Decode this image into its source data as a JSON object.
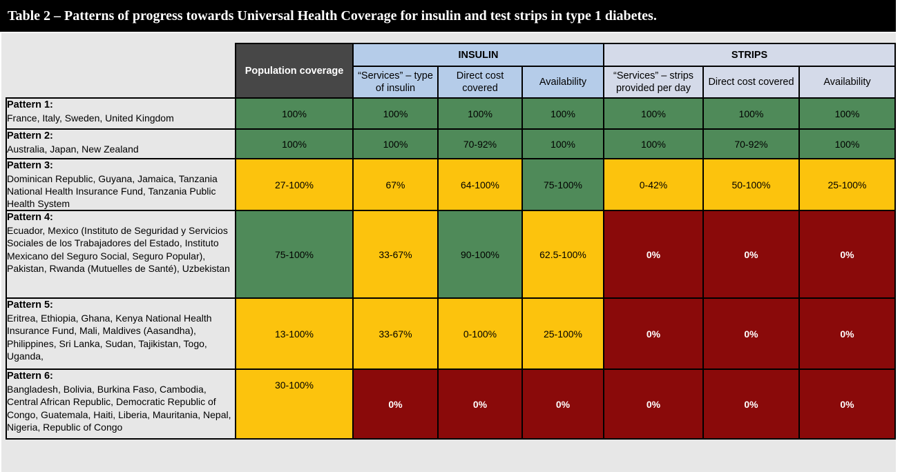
{
  "title": "Table 2 – Patterns of progress towards Universal Health Coverage for insulin and test strips in type 1 diabetes.",
  "colors": {
    "title_bar_bg": "#000000",
    "panel_bg": "#E7E7E7",
    "population_header_bg": "#474747",
    "insulin_header_bg": "#B5CCE9",
    "strips_header_bg": "#D4DAE9",
    "green": "#4F8A59",
    "yellow": "#FCC30D",
    "red": "#8A0A0A"
  },
  "header": {
    "population": "Population coverage",
    "insulin": "INSULIN",
    "strips": "STRIPS",
    "insulin_cols": [
      "“Services” – type of insulin",
      "Direct cost covered",
      "Availability"
    ],
    "strips_cols": [
      "“Services” – strips provided per day",
      "Direct cost covered",
      "Availability"
    ]
  },
  "rows": [
    {
      "pattern": "Pattern 1:",
      "countries": "France, Italy, Sweden, United Kingdom",
      "cells": [
        {
          "value": "100%",
          "color": "green"
        },
        {
          "value": "100%",
          "color": "green"
        },
        {
          "value": "100%",
          "color": "green"
        },
        {
          "value": "100%",
          "color": "green"
        },
        {
          "value": "100%",
          "color": "green"
        },
        {
          "value": "100%",
          "color": "green"
        },
        {
          "value": "100%",
          "color": "green"
        }
      ]
    },
    {
      "pattern": "Pattern 2:",
      "countries": "Australia, Japan, New Zealand",
      "cells": [
        {
          "value": "100%",
          "color": "green"
        },
        {
          "value": "100%",
          "color": "green"
        },
        {
          "value": "70-92%",
          "color": "green"
        },
        {
          "value": "100%",
          "color": "green"
        },
        {
          "value": "100%",
          "color": "green"
        },
        {
          "value": "70-92%",
          "color": "green"
        },
        {
          "value": "100%",
          "color": "green"
        }
      ]
    },
    {
      "pattern": "Pattern 3:",
      "countries": "Dominican Republic, Guyana, Jamaica, Tanzania National Health Insurance Fund, Tanzania Public Health System",
      "cells": [
        {
          "value": "27-100%",
          "color": "yellow"
        },
        {
          "value": "67%",
          "color": "yellow"
        },
        {
          "value": "64-100%",
          "color": "yellow"
        },
        {
          "value": "75-100%",
          "color": "green"
        },
        {
          "value": "0-42%",
          "color": "yellow"
        },
        {
          "value": "50-100%",
          "color": "yellow"
        },
        {
          "value": "25-100%",
          "color": "yellow"
        }
      ]
    },
    {
      "pattern": "Pattern 4:",
      "countries": "Ecuador, Mexico (Instituto de Seguridad y Servicios Sociales de los Trabajadores del Estado, Instituto Mexicano del Seguro Social, Seguro Popular), Pakistan, Rwanda (Mutuelles de Santé), Uzbekistan",
      "cells": [
        {
          "value": "75-100%",
          "color": "green"
        },
        {
          "value": "33-67%",
          "color": "yellow"
        },
        {
          "value": "90-100%",
          "color": "green"
        },
        {
          "value": "62.5-100%",
          "color": "yellow"
        },
        {
          "value": "0%",
          "color": "red"
        },
        {
          "value": "0%",
          "color": "red"
        },
        {
          "value": "0%",
          "color": "red"
        }
      ]
    },
    {
      "pattern": "Pattern 5:",
      "countries": "Eritrea, Ethiopia, Ghana, Kenya National Health Insurance Fund, Mali, Maldives (Aasandha), Philippines, Sri Lanka, Sudan, Tajikistan, Togo, Uganda,",
      "cells": [
        {
          "value": "13-100%",
          "color": "yellow"
        },
        {
          "value": "33-67%",
          "color": "yellow"
        },
        {
          "value": "0-100%",
          "color": "yellow"
        },
        {
          "value": "25-100%",
          "color": "yellow"
        },
        {
          "value": "0%",
          "color": "red"
        },
        {
          "value": "0%",
          "color": "red"
        },
        {
          "value": "0%",
          "color": "red"
        }
      ]
    },
    {
      "pattern": "Pattern 6:",
      "countries": "Bangladesh, Bolivia, Burkina Faso, Cambodia, Central African Republic, Democratic Republic of Congo, Guatemala, Haiti, Liberia, Mauritania, Nepal, Nigeria, Republic of Congo",
      "cells": [
        {
          "value": "30-100%",
          "color": "yellow",
          "align": "top"
        },
        {
          "value": "0%",
          "color": "red"
        },
        {
          "value": "0%",
          "color": "red"
        },
        {
          "value": "0%",
          "color": "red"
        },
        {
          "value": "0%",
          "color": "red"
        },
        {
          "value": "0%",
          "color": "red"
        },
        {
          "value": "0%",
          "color": "red"
        }
      ]
    }
  ]
}
